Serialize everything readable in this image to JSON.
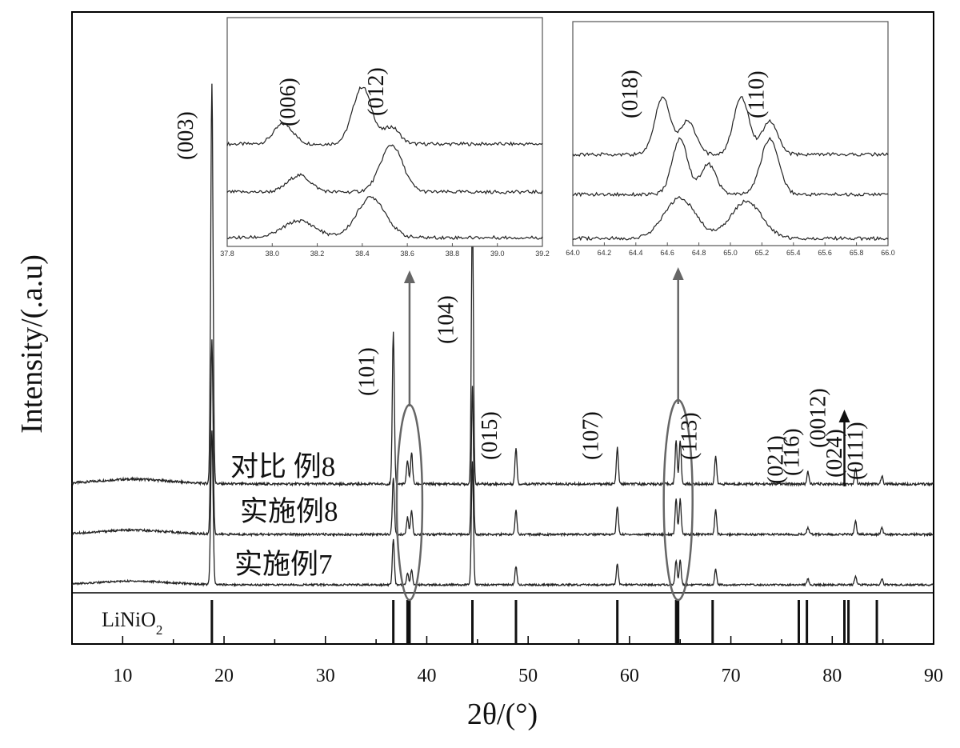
{
  "chart_data": {
    "type": "line",
    "xlabel": "2θ/(°)",
    "ylabel": "Intensity/(.a.u)",
    "xlim": [
      5,
      90
    ],
    "xticks": [
      10,
      20,
      30,
      40,
      50,
      60,
      70,
      80,
      90
    ],
    "y_units": "arbitrary",
    "peaks_2theta": [
      18.8,
      36.7,
      38.1,
      38.5,
      44.5,
      48.8,
      58.8,
      64.6,
      65.0,
      68.5,
      77.6,
      82.3,
      84.9
    ],
    "series": [
      {
        "name": "对比  例8",
        "baseline": 0.5,
        "intensities": [
          1.0,
          0.38,
          0.06,
          0.08,
          0.7,
          0.09,
          0.09,
          0.11,
          0.11,
          0.07,
          0.03,
          0.04,
          0.02
        ]
      },
      {
        "name": "实施例8",
        "baseline": 0.25,
        "intensities": [
          0.55,
          0.16,
          0.05,
          0.07,
          0.42,
          0.07,
          0.08,
          0.1,
          0.1,
          0.07,
          0.02,
          0.04,
          0.02
        ]
      },
      {
        "name": "实施例7",
        "baseline": 0.0,
        "intensities": [
          0.5,
          0.15,
          0.04,
          0.05,
          0.4,
          0.06,
          0.07,
          0.08,
          0.08,
          0.05,
          0.02,
          0.03,
          0.02
        ]
      }
    ],
    "reference": {
      "label_main": "LiNiO",
      "label_sub": "2",
      "lines_2theta": [
        18.8,
        36.7,
        38.1,
        38.3,
        44.5,
        48.8,
        58.8,
        64.6,
        64.8,
        68.2,
        76.7,
        77.5,
        81.2,
        81.6,
        84.4
      ]
    },
    "peak_labels": [
      {
        "text": "(003)",
        "x": 18.8
      },
      {
        "text": "(101)",
        "x": 36.7
      },
      {
        "text": "(104)",
        "x": 44.5
      },
      {
        "text": "(015)",
        "x": 48.8
      },
      {
        "text": "(107)",
        "x": 58.8
      },
      {
        "text": "(113)",
        "x": 68.5
      },
      {
        "text": "(021)",
        "x": 77.0
      },
      {
        "text": "(116)",
        "x": 78.6
      },
      {
        "text": "(0012)",
        "x": 81.2
      },
      {
        "text": "(024)",
        "x": 82.8
      },
      {
        "text": "(0111)",
        "x": 84.9
      }
    ],
    "insets": [
      {
        "xlim": [
          37.8,
          39.2
        ],
        "xticks": [
          "37.8",
          "38.0",
          "38.2",
          "38.4",
          "38.6",
          "38.8",
          "39.0",
          "39.2"
        ],
        "labels": [
          {
            "text": "(006)",
            "x": 38.08
          },
          {
            "text": "(012)",
            "x": 38.5
          }
        ],
        "traces": [
          {
            "peaks": [
              [
                38.05,
                0.12,
                0.06
              ],
              [
                38.4,
                0.34,
                0.06
              ],
              [
                38.53,
                0.1,
                0.05
              ]
            ]
          },
          {
            "peaks": [
              [
                38.12,
                0.1,
                0.07
              ],
              [
                38.53,
                0.28,
                0.07
              ]
            ]
          },
          {
            "peaks": [
              [
                38.12,
                0.1,
                0.1
              ],
              [
                38.44,
                0.24,
                0.09
              ]
            ]
          }
        ]
      },
      {
        "xlim": [
          64.0,
          66.0
        ],
        "xticks": [
          "64.0",
          "64.2",
          "64.4",
          "64.6",
          "64.8",
          "65.0",
          "65.2",
          "65.4",
          "65.6",
          "65.8",
          "66.0"
        ],
        "labels": [
          {
            "text": "(018)",
            "x": 64.42
          },
          {
            "text": "(110)",
            "x": 65.22
          }
        ],
        "traces": [
          {
            "peaks": [
              [
                64.57,
                0.34,
                0.07
              ],
              [
                64.73,
                0.2,
                0.07
              ],
              [
                65.07,
                0.34,
                0.07
              ],
              [
                65.25,
                0.2,
                0.07
              ]
            ]
          },
          {
            "peaks": [
              [
                64.68,
                0.33,
                0.07
              ],
              [
                64.86,
                0.18,
                0.07
              ],
              [
                65.25,
                0.33,
                0.08
              ]
            ]
          },
          {
            "peaks": [
              [
                64.68,
                0.24,
                0.14
              ],
              [
                65.1,
                0.22,
                0.14
              ]
            ]
          }
        ]
      }
    ]
  }
}
